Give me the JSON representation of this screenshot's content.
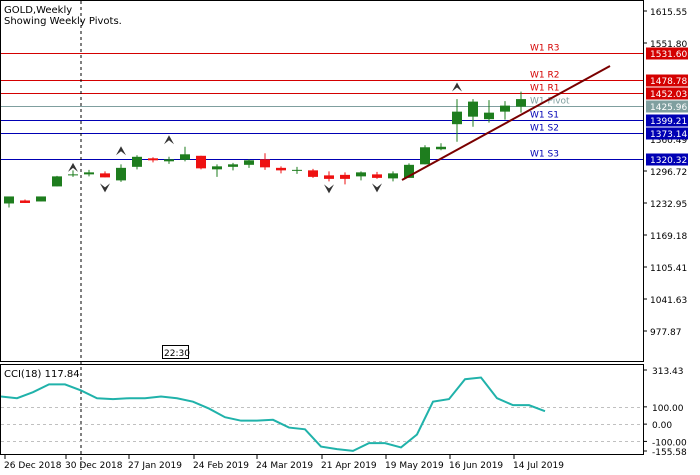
{
  "header": {
    "symbol_title": "GOLD,Weekly",
    "subtitle": "Showing Weekly Pivots."
  },
  "time_marker": "22:30",
  "price_axis": [
    "1615.55",
    "1551.80",
    "1296.72",
    "1232.95",
    "1169.18",
    "1105.41",
    "1041.63",
    "977.87"
  ],
  "pivots": [
    {
      "name": "W1  R3",
      "price": 1531.6,
      "label": "1531.60",
      "color": "#d40000"
    },
    {
      "name": "W1  R2",
      "price": 1478.78,
      "label": "1478.78",
      "color": "#d40000"
    },
    {
      "name": "W1  R1",
      "price": 1452.03,
      "label": "1452.03",
      "color": "#d40000"
    },
    {
      "name": "W1  Pivot",
      "price": 1425.96,
      "label": "1425.96",
      "color": "#7f9f9f"
    },
    {
      "name": "W1  S1",
      "price": 1399.21,
      "label": "1399.21",
      "color": "#0000b4"
    },
    {
      "name": "W1  S2",
      "price": 1373.14,
      "label": "1373.14",
      "color": "#0000b4"
    },
    {
      "name": "W1  S3",
      "price": 1320.32,
      "label": "1320.32",
      "color": "#0000b4"
    }
  ],
  "hidden_axis_label": "1360.49",
  "candles": [
    {
      "o": 1232,
      "h": 1246,
      "l": 1224,
      "c": 1246
    },
    {
      "o": 1238,
      "h": 1240,
      "l": 1233,
      "c": 1233
    },
    {
      "o": 1236,
      "h": 1246,
      "l": 1236,
      "c": 1246
    },
    {
      "o": 1266,
      "h": 1287,
      "l": 1266,
      "c": 1286
    },
    {
      "o": 1288,
      "h": 1298,
      "l": 1285,
      "c": 1290
    },
    {
      "o": 1290,
      "h": 1299,
      "l": 1286,
      "c": 1294
    },
    {
      "o": 1292,
      "h": 1296,
      "l": 1284,
      "c": 1284
    },
    {
      "o": 1278,
      "h": 1310,
      "l": 1275,
      "c": 1303
    },
    {
      "o": 1305,
      "h": 1328,
      "l": 1300,
      "c": 1325
    },
    {
      "o": 1322,
      "h": 1324,
      "l": 1314,
      "c": 1318
    },
    {
      "o": 1316,
      "h": 1325,
      "l": 1311,
      "c": 1320
    },
    {
      "o": 1319,
      "h": 1345,
      "l": 1316,
      "c": 1330
    },
    {
      "o": 1327,
      "h": 1327,
      "l": 1300,
      "c": 1302
    },
    {
      "o": 1300,
      "h": 1310,
      "l": 1285,
      "c": 1306
    },
    {
      "o": 1305,
      "h": 1313,
      "l": 1298,
      "c": 1310
    },
    {
      "o": 1309,
      "h": 1320,
      "l": 1303,
      "c": 1318
    },
    {
      "o": 1320,
      "h": 1332,
      "l": 1299,
      "c": 1304
    },
    {
      "o": 1303,
      "h": 1306,
      "l": 1292,
      "c": 1298
    },
    {
      "o": 1298,
      "h": 1305,
      "l": 1291,
      "c": 1299
    },
    {
      "o": 1298,
      "h": 1301,
      "l": 1283,
      "c": 1285
    },
    {
      "o": 1288,
      "h": 1296,
      "l": 1276,
      "c": 1281
    },
    {
      "o": 1289,
      "h": 1294,
      "l": 1270,
      "c": 1281
    },
    {
      "o": 1286,
      "h": 1296,
      "l": 1278,
      "c": 1294
    },
    {
      "o": 1290,
      "h": 1295,
      "l": 1281,
      "c": 1283
    },
    {
      "o": 1282,
      "h": 1296,
      "l": 1276,
      "c": 1292
    },
    {
      "o": 1283,
      "h": 1312,
      "l": 1283,
      "c": 1309
    },
    {
      "o": 1310,
      "h": 1348,
      "l": 1310,
      "c": 1344
    },
    {
      "o": 1340,
      "h": 1352,
      "l": 1338,
      "c": 1345
    },
    {
      "o": 1390,
      "h": 1440,
      "l": 1355,
      "c": 1415
    },
    {
      "o": 1405,
      "h": 1440,
      "l": 1385,
      "c": 1435
    },
    {
      "o": 1400,
      "h": 1438,
      "l": 1393,
      "c": 1413
    },
    {
      "o": 1415,
      "h": 1436,
      "l": 1399,
      "c": 1427
    },
    {
      "o": 1425,
      "h": 1455,
      "l": 1413,
      "c": 1440
    }
  ],
  "fractals_up": [
    [
      4,
      1305
    ],
    [
      7,
      1338
    ],
    [
      10,
      1360
    ],
    [
      28,
      1465
    ]
  ],
  "fractals_down": [
    [
      6,
      1262
    ],
    [
      20,
      1260
    ],
    [
      23,
      1262
    ]
  ],
  "trendline": {
    "x1": 402,
    "y1": 180,
    "x2": 610,
    "y2": 66
  },
  "vline_x": 81,
  "cci": {
    "label": "CCI(18) 117.84",
    "axis": [
      "313.43",
      "100.00",
      "0.00",
      "-100.00",
      "-155.58"
    ],
    "levels": [
      100,
      0,
      -100
    ],
    "values": [
      160,
      150,
      185,
      230,
      230,
      195,
      150,
      145,
      150,
      150,
      160,
      150,
      130,
      90,
      40,
      20,
      20,
      25,
      -20,
      -30,
      -130,
      -145,
      -155,
      -110,
      -110,
      -135,
      -60,
      130,
      145,
      260,
      270,
      150,
      110,
      110,
      75
    ]
  },
  "time_axis": [
    "26 Dec 2018",
    "30 Dec 2018",
    "27 Jan 2019",
    "24 Feb 2019",
    "24 Mar 2019",
    "21 Apr 2019",
    "19 May 2019",
    "16 Jun 2019",
    "14 Jul 2019"
  ],
  "colors": {
    "bull": "#1e7d1e",
    "bear": "#ee1111",
    "trend": "#7a0000",
    "cci_line": "#20b2aa",
    "grid_dash": "#c0c0c0"
  }
}
